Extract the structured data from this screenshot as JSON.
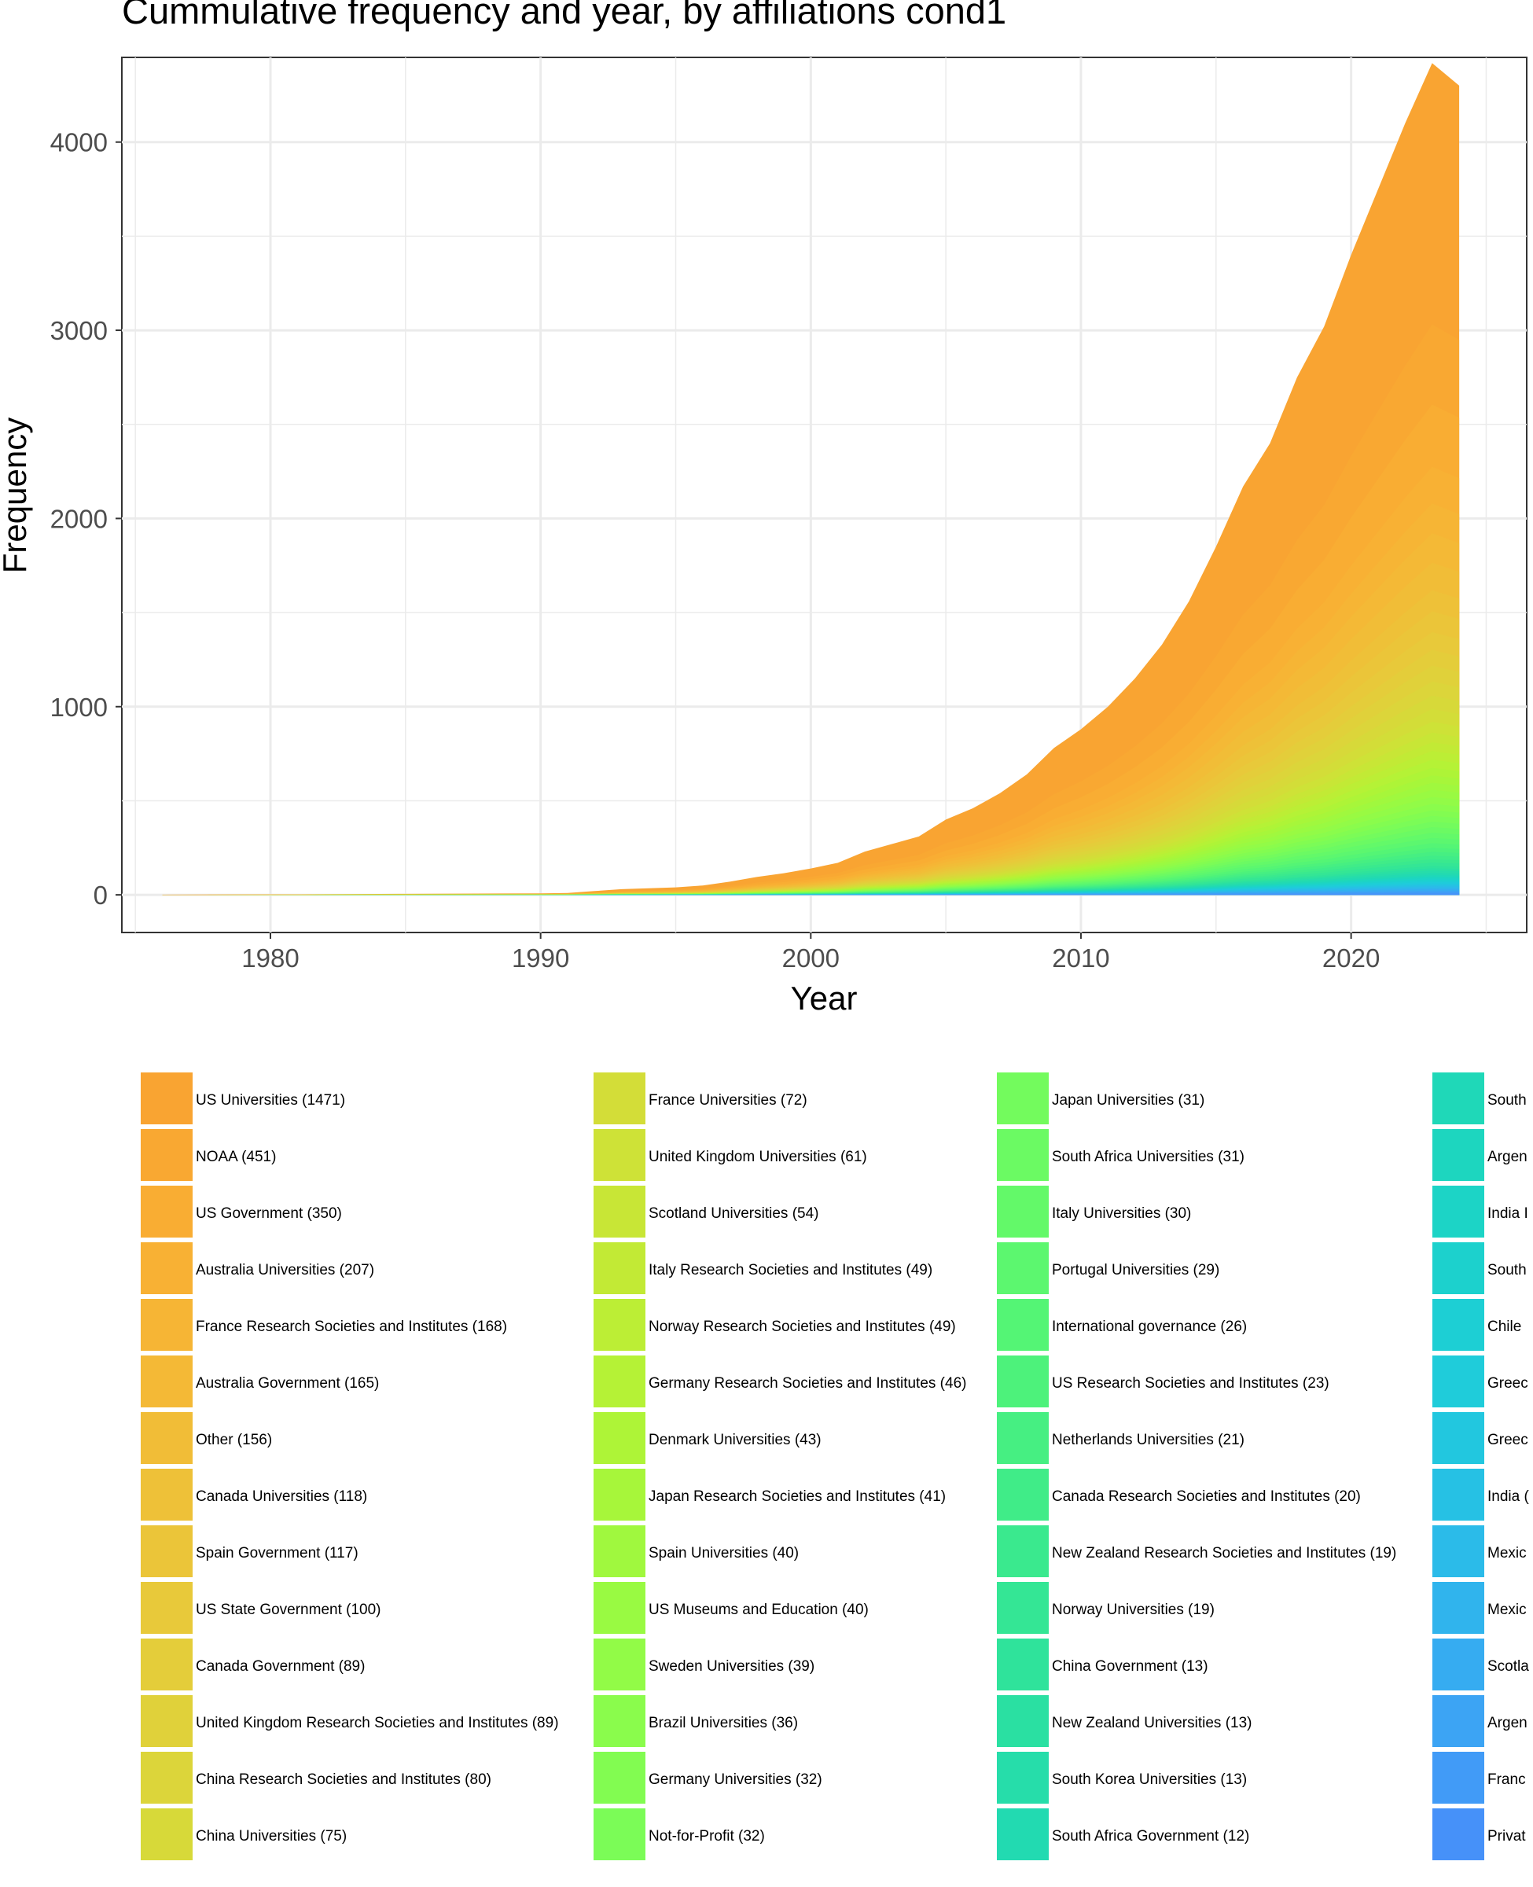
{
  "chart_data": {
    "type": "area",
    "title": "Cummulative frequency and year, by affiliations cond1",
    "xlabel": "Year",
    "ylabel": "Frequency",
    "xlim": [
      1974.5,
      2026.5
    ],
    "ylim": [
      -200,
      4450
    ],
    "x_ticks": [
      1980,
      1990,
      2000,
      2010,
      2020
    ],
    "y_ticks": [
      0,
      1000,
      2000,
      3000,
      4000
    ],
    "grid": true,
    "stacked": true,
    "total_cumulative": {
      "x": [
        1976,
        1980,
        1985,
        1990,
        1991,
        1992,
        1993,
        1995,
        1996,
        1997,
        1998,
        1999,
        2000,
        2001,
        2002,
        2003,
        2004,
        2005,
        2006,
        2007,
        2008,
        2009,
        2010,
        2011,
        2012,
        2013,
        2014,
        2015,
        2016,
        2017,
        2018,
        2019,
        2020,
        2021,
        2022,
        2023,
        2024
      ],
      "y": [
        1,
        2,
        5,
        8,
        10,
        20,
        30,
        40,
        50,
        70,
        95,
        115,
        140,
        170,
        230,
        270,
        310,
        400,
        460,
        540,
        640,
        780,
        880,
        1000,
        1150,
        1330,
        1560,
        1850,
        2170,
        2400,
        2750,
        3020,
        3400,
        3750,
        4100,
        4420,
        4300
      ]
    },
    "series": [
      {
        "name": "US Universities (1471)",
        "total": 1471,
        "color": "#f9a432"
      },
      {
        "name": "NOAA (451)",
        "total": 451,
        "color": "#f9a832"
      },
      {
        "name": "US Government (350)",
        "total": 350,
        "color": "#f9ad33"
      },
      {
        "name": "Australia Universities (207)",
        "total": 207,
        "color": "#f8b134"
      },
      {
        "name": "France Research Societies and Institutes (168)",
        "total": 168,
        "color": "#f6b535"
      },
      {
        "name": "Australia Government (165)",
        "total": 165,
        "color": "#f4b936"
      },
      {
        "name": "Other (156)",
        "total": 156,
        "color": "#f1bd37"
      },
      {
        "name": "Canada Universities (118)",
        "total": 118,
        "color": "#eec138"
      },
      {
        "name": "Spain Government (117)",
        "total": 117,
        "color": "#ebc539"
      },
      {
        "name": "US State Government (100)",
        "total": 100,
        "color": "#e8c93a"
      },
      {
        "name": "Canada Government (89)",
        "total": 89,
        "color": "#e4cd3a"
      },
      {
        "name": "United Kingdom Research Societies and Institutes (89)",
        "total": 89,
        "color": "#e0d13a"
      },
      {
        "name": "China Research Societies and Institutes (80)",
        "total": 80,
        "color": "#dcd53a"
      },
      {
        "name": "China Universities (75)",
        "total": 75,
        "color": "#d7d939"
      },
      {
        "name": "France Universities (72)",
        "total": 72,
        "color": "#d3dd38"
      },
      {
        "name": "United Kingdom Universities (61)",
        "total": 61,
        "color": "#cee237"
      },
      {
        "name": "Scotland Universities (54)",
        "total": 54,
        "color": "#c8e636"
      },
      {
        "name": "Italy Research Societies and Institutes (49)",
        "total": 49,
        "color": "#c2ea35"
      },
      {
        "name": "Norway Research Societies and Institutes (49)",
        "total": 49,
        "color": "#bcee35"
      },
      {
        "name": "Germany Research Societies and Institutes (46)",
        "total": 46,
        "color": "#b5f236"
      },
      {
        "name": "Denmark Universities (43)",
        "total": 43,
        "color": "#aef437"
      },
      {
        "name": "Japan Research Societies and Institutes (41)",
        "total": 41,
        "color": "#a7f63a"
      },
      {
        "name": "Spain Universities (40)",
        "total": 40,
        "color": "#a0f83e"
      },
      {
        "name": "US Museums and Education (40)",
        "total": 40,
        "color": "#99fa42"
      },
      {
        "name": "Sweden Universities (39)",
        "total": 39,
        "color": "#92fb47"
      },
      {
        "name": "Brazil Universities (36)",
        "total": 36,
        "color": "#8afc4c"
      },
      {
        "name": "Germany Universities (32)",
        "total": 32,
        "color": "#82fc51"
      },
      {
        "name": "Not-for-Profit (32)",
        "total": 32,
        "color": "#7bfc57"
      },
      {
        "name": "Japan Universities (31)",
        "total": 31,
        "color": "#73fb5d"
      },
      {
        "name": "South Africa Universities (31)",
        "total": 31,
        "color": "#6bfa63"
      },
      {
        "name": "Italy Universities (30)",
        "total": 30,
        "color": "#63f969"
      },
      {
        "name": "Portugal Universities (29)",
        "total": 29,
        "color": "#5cf76f"
      },
      {
        "name": "International governance (26)",
        "total": 26,
        "color": "#54f575"
      },
      {
        "name": "US Research Societies and Institutes (23)",
        "total": 23,
        "color": "#4df27b"
      },
      {
        "name": "Netherlands Universities (21)",
        "total": 21,
        "color": "#46ef82"
      },
      {
        "name": "Canada Research Societies and Institutes (20)",
        "total": 20,
        "color": "#40ec88"
      },
      {
        "name": "New Zealand Research Societies and Institutes (19)",
        "total": 19,
        "color": "#3ae98e"
      },
      {
        "name": "Norway Universities (19)",
        "total": 19,
        "color": "#34e695"
      },
      {
        "name": "China Government (13)",
        "total": 13,
        "color": "#2fe39b"
      },
      {
        "name": "New Zealand Universities (13)",
        "total": 13,
        "color": "#2ae0a2"
      },
      {
        "name": "South Korea Universities (13)",
        "total": 13,
        "color": "#26ddaa"
      },
      {
        "name": "South Africa Government (12)",
        "total": 12,
        "color": "#22dab1"
      },
      {
        "name": "South",
        "color": "#1fd8b8"
      },
      {
        "name": "Argen",
        "color": "#1dd6bf"
      },
      {
        "name": "India I",
        "color": "#1cd4c6"
      },
      {
        "name": "South",
        "color": "#1cd1cd"
      },
      {
        "name": "Chile",
        "color": "#1dcfd4"
      },
      {
        "name": "Greec",
        "color": "#1fccda"
      },
      {
        "name": "Greec",
        "color": "#22c7df"
      },
      {
        "name": "India (",
        "color": "#26c1e4"
      },
      {
        "name": "Mexic",
        "color": "#2bbbe9"
      },
      {
        "name": "Mexic",
        "color": "#30b4ed"
      },
      {
        "name": "Scotla",
        "color": "#36acf1"
      },
      {
        "name": "Argen",
        "color": "#3ca4f4"
      },
      {
        "name": "Franc",
        "color": "#419bf7"
      },
      {
        "name": "Privat",
        "color": "#4691f9"
      }
    ],
    "legend_position": "bottom"
  }
}
